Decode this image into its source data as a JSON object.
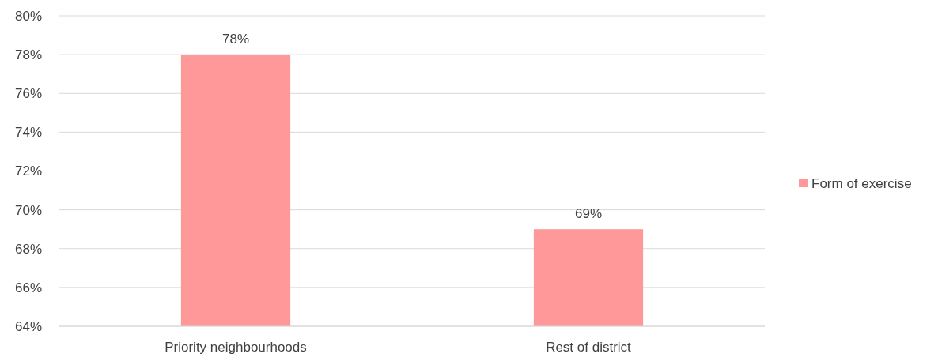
{
  "chart_data": {
    "type": "bar",
    "categories": [
      "Priority neighbourhoods",
      "Rest of district"
    ],
    "series": [
      {
        "name": "Form of exercise",
        "color": "#ff9999",
        "values": [
          78,
          69
        ],
        "value_labels": [
          "78%",
          "69%"
        ]
      }
    ],
    "ylim": [
      64,
      80
    ],
    "yticks": [
      {
        "value": 64,
        "label": "64%"
      },
      {
        "value": 66,
        "label": "66%"
      },
      {
        "value": 68,
        "label": "68%"
      },
      {
        "value": 70,
        "label": "70%"
      },
      {
        "value": 72,
        "label": "72%"
      },
      {
        "value": 74,
        "label": "74%"
      },
      {
        "value": 76,
        "label": "76%"
      },
      {
        "value": 78,
        "label": "78%"
      },
      {
        "value": 80,
        "label": "80%"
      }
    ],
    "grid": "y",
    "legend": "right"
  }
}
